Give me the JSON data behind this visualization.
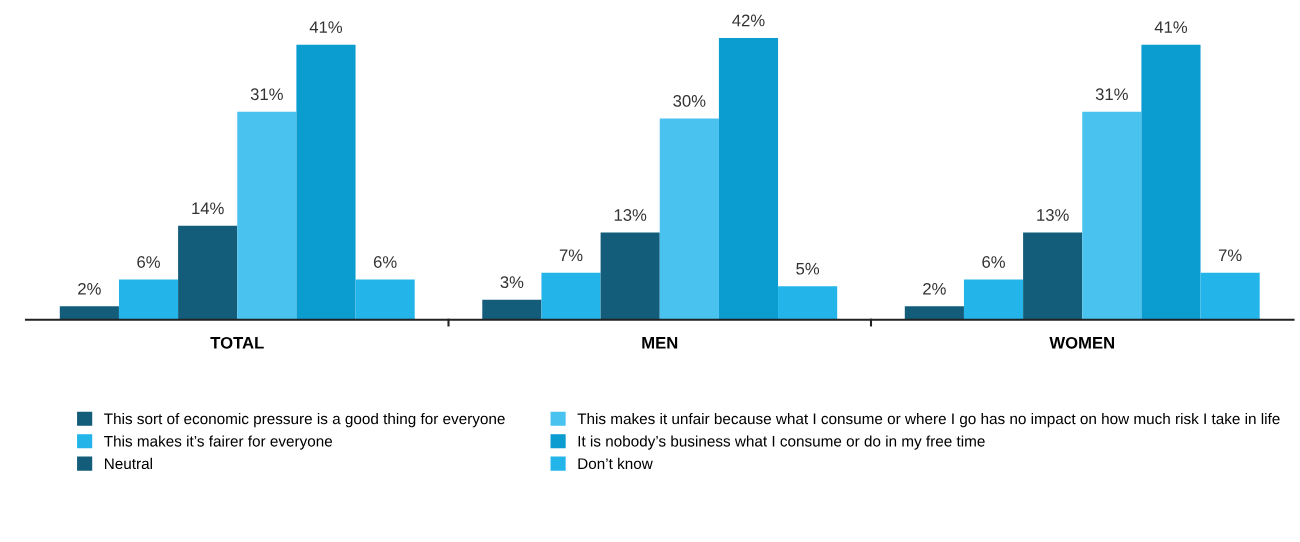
{
  "chart_data": {
    "type": "bar",
    "categories": [
      "TOTAL",
      "MEN",
      "WOMEN"
    ],
    "series": [
      {
        "name": "This sort of economic pressure is a good thing for everyone",
        "color": "#135c7a",
        "values": [
          2,
          3,
          2
        ],
        "value_labels": [
          "2%",
          "3%",
          "2%"
        ]
      },
      {
        "name": "This makes it’s fairer for everyone",
        "color": "#23b5ea",
        "values": [
          6,
          7,
          6
        ],
        "value_labels": [
          "6%",
          "7%",
          "6%"
        ]
      },
      {
        "name": "Neutral",
        "color": "#135c7a",
        "values": [
          14,
          13,
          13
        ],
        "value_labels": [
          "14%",
          "13%",
          "13%"
        ]
      },
      {
        "name": "This makes it unfair because what I consume or where I go has no impact on how much risk I take in life",
        "color": "#49c2ef",
        "values": [
          31,
          30,
          31
        ],
        "value_labels": [
          "31%",
          "30%",
          "31%"
        ]
      },
      {
        "name": "It is nobody’s business what I consume or do in my free time",
        "color": "#0b9cd0",
        "values": [
          41,
          42,
          41
        ],
        "value_labels": [
          "41%",
          "42%",
          "41%"
        ]
      },
      {
        "name": "Don’t know",
        "color": "#23b5ea",
        "values": [
          6,
          5,
          7
        ],
        "value_labels": [
          "6%",
          "5%",
          "7%"
        ]
      }
    ],
    "legend": "bottom left",
    "tick_labels": "x"
  }
}
